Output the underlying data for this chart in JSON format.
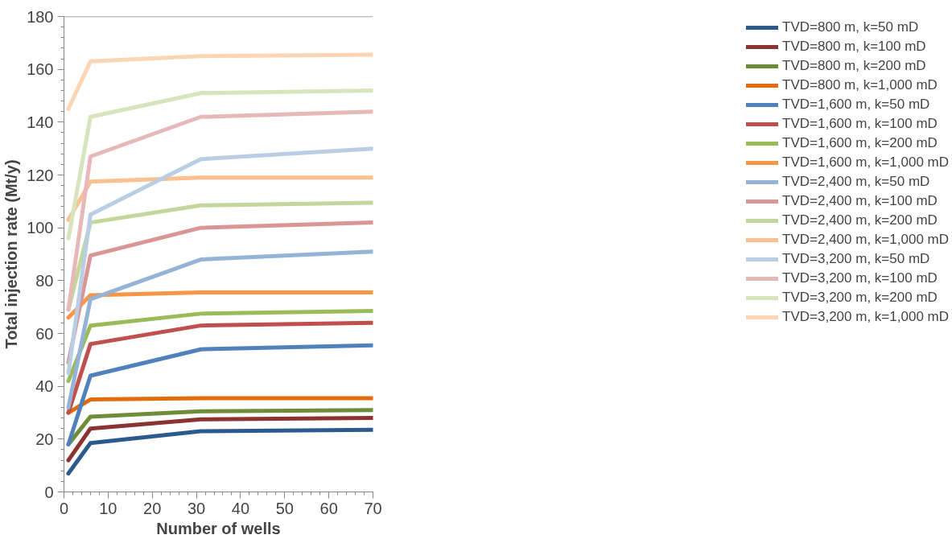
{
  "chart_data": {
    "type": "line",
    "xlabel": "Number of wells",
    "ylabel": "Total injection rate (Mt/y)",
    "x": [
      1,
      6,
      31,
      70
    ],
    "xlim": [
      0,
      70
    ],
    "xticks": [
      0,
      10,
      20,
      30,
      40,
      50,
      60,
      70
    ],
    "ylim": [
      0,
      180
    ],
    "yticks": [
      0,
      20,
      40,
      60,
      80,
      100,
      120,
      140,
      160,
      180
    ],
    "grid": false,
    "legend": "right",
    "marker": "none",
    "line_style": "solid",
    "series": [
      {
        "name": "TVD=800 m, k=50 mD",
        "color": "#2c5a8f",
        "values": [
          7,
          18.5,
          23,
          23.5
        ]
      },
      {
        "name": "TVD=800 m, k=100 mD",
        "color": "#8c3331",
        "values": [
          12,
          24,
          27.5,
          28
        ]
      },
      {
        "name": "TVD=800 m, k=200 mD",
        "color": "#6f8c38",
        "values": [
          18,
          28.5,
          30.5,
          31
        ]
      },
      {
        "name": "TVD=800 m, k=1,000 mD",
        "color": "#e26b0a",
        "values": [
          30,
          35,
          35.5,
          35.5
        ]
      },
      {
        "name": "TVD=1,600 m, k=50 mD",
        "color": "#4f81bd",
        "values": [
          18,
          44,
          54,
          55.5
        ]
      },
      {
        "name": "TVD=1,600 m, k=100 mD",
        "color": "#c0504d",
        "values": [
          30,
          56,
          63,
          64
        ]
      },
      {
        "name": "TVD=1,600 m, k=200 mD",
        "color": "#9bbb59",
        "values": [
          42,
          63,
          67.5,
          68.5
        ]
      },
      {
        "name": "TVD=1,600 m, k=1,000 mD",
        "color": "#f79646",
        "values": [
          66,
          74.5,
          75.5,
          75.5
        ]
      },
      {
        "name": "TVD=2,400 m, k=50 mD",
        "color": "#95b3d7",
        "values": [
          32,
          73,
          88,
          91
        ]
      },
      {
        "name": "TVD=2,400 m, k=100 mD",
        "color": "#d99694",
        "values": [
          49,
          89.5,
          100,
          102
        ]
      },
      {
        "name": "TVD=2,400 m, k=200 mD",
        "color": "#c3d69b",
        "values": [
          69,
          102,
          108.5,
          109.5
        ]
      },
      {
        "name": "TVD=2,400 m, k=1,000 mD",
        "color": "#fac090",
        "values": [
          103,
          117.5,
          119,
          119
        ]
      },
      {
        "name": "TVD=3,200 m, k=50 mD",
        "color": "#b9cde5",
        "values": [
          45,
          105,
          126,
          130
        ]
      },
      {
        "name": "TVD=3,200 m, k=100 mD",
        "color": "#e6b9b8",
        "values": [
          69,
          127,
          142,
          144
        ]
      },
      {
        "name": "TVD=3,200 m, k=200 mD",
        "color": "#d7e4bd",
        "values": [
          96,
          142,
          151,
          152
        ]
      },
      {
        "name": "TVD=3,200 m, k=1,000 mD",
        "color": "#fcd5b5",
        "values": [
          145,
          163,
          165,
          165.5
        ]
      }
    ]
  }
}
